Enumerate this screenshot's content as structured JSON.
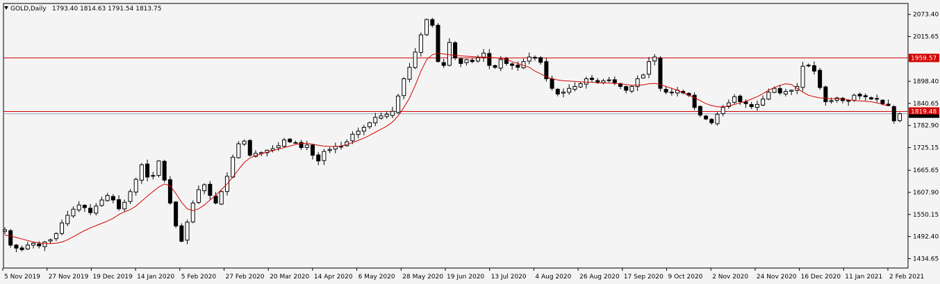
{
  "header": {
    "symbol": "GOLD,Daily",
    "ohlc": "1793.40 1814.63 1791.54 1813.75"
  },
  "chart_data": {
    "type": "candlestick",
    "title": "GOLD,Daily",
    "ylim": [
      1410,
      2102
    ],
    "grid": false,
    "colors": {
      "candle": "#000000",
      "moving_average": "#d40000",
      "level": "#d40000",
      "background": "#f4f4f4"
    },
    "y_ticks": [
      "2073.40",
      "2015.65",
      "1959.57",
      "1898.40",
      "1840.65",
      "1819.48",
      "1782.90",
      "1725.15",
      "1665.65",
      "1607.90",
      "1550.15",
      "1492.40",
      "1434.65"
    ],
    "x_ticks": [
      "5 Nov 2019",
      "27 Nov 2019",
      "19 Dec 2019",
      "14 Jan 2020",
      "5 Feb 2020",
      "27 Feb 2020",
      "20 Mar 2020",
      "14 Apr 2020",
      "6 May 2020",
      "28 May 2020",
      "19 Jun 2020",
      "13 Jul 2020",
      "4 Aug 2020",
      "26 Aug 2020",
      "17 Sep 2020",
      "9 Oct 2020",
      "2 Nov 2020",
      "24 Nov 2020",
      "16 Dec 2020",
      "11 Jan 2021",
      "2 Feb 2021"
    ],
    "levels": [
      {
        "label": "1959.57",
        "value": 1959.57
      },
      {
        "label": "1819.48",
        "value": 1819.48
      }
    ],
    "current_price": 1813.75,
    "close_path": [
      1510,
      1470,
      1462,
      1458,
      1470,
      1475,
      1468,
      1478,
      1484,
      1500,
      1528,
      1548,
      1564,
      1575,
      1568,
      1555,
      1572,
      1588,
      1600,
      1588,
      1565,
      1582,
      1610,
      1642,
      1680,
      1648,
      1652,
      1690,
      1640,
      1580,
      1520,
      1480,
      1530,
      1580,
      1615,
      1628,
      1600,
      1580,
      1610,
      1650,
      1700,
      1735,
      1742,
      1705,
      1710,
      1712,
      1718,
      1722,
      1730,
      1745,
      1740,
      1738,
      1725,
      1732,
      1705,
      1690,
      1715,
      1720,
      1728,
      1728,
      1740,
      1760,
      1768,
      1778,
      1790,
      1804,
      1808,
      1812,
      1820,
      1860,
      1905,
      1935,
      1975,
      2020,
      2060,
      2045,
      1950,
      1940,
      2000,
      1960,
      1945,
      1955,
      1950,
      1960,
      1972,
      1940,
      1935,
      1955,
      1945,
      1940,
      1935,
      1950,
      1962,
      1960,
      1948,
      1905,
      1880,
      1865,
      1870,
      1880,
      1885,
      1892,
      1905,
      1903,
      1895,
      1900,
      1902,
      1895,
      1885,
      1875,
      1885,
      1905,
      1915,
      1950,
      1962,
      1880,
      1870,
      1870,
      1875,
      1868,
      1862,
      1830,
      1810,
      1800,
      1790,
      1812,
      1830,
      1842,
      1858,
      1845,
      1840,
      1832,
      1838,
      1852,
      1870,
      1880,
      1868,
      1872,
      1875,
      1885,
      1938,
      1940,
      1925,
      1882,
      1845,
      1848,
      1855,
      1848,
      1848,
      1862,
      1860,
      1858,
      1852,
      1852,
      1840,
      1835,
      1795,
      1813.75
    ],
    "ma_path": [
      1496,
      1494,
      1490,
      1486,
      1482,
      1478,
      1476,
      1474,
      1474,
      1475,
      1478,
      1484,
      1492,
      1500,
      1508,
      1515,
      1521,
      1527,
      1533,
      1540,
      1550,
      1557,
      1563,
      1572,
      1585,
      1598,
      1610,
      1622,
      1630,
      1625,
      1605,
      1582,
      1565,
      1560,
      1565,
      1575,
      1588,
      1600,
      1615,
      1630,
      1648,
      1668,
      1686,
      1698,
      1704,
      1709,
      1713,
      1717,
      1721,
      1725,
      1729,
      1733,
      1736,
      1736,
      1734,
      1731,
      1729,
      1728,
      1728,
      1729,
      1733,
      1738,
      1744,
      1750,
      1757,
      1765,
      1773,
      1781,
      1792,
      1808,
      1830,
      1855,
      1888,
      1925,
      1955,
      1968,
      1972,
      1970,
      1968,
      1966,
      1965,
      1964,
      1963,
      1962,
      1962,
      1961,
      1960,
      1958,
      1955,
      1950,
      1945,
      1940,
      1935,
      1925,
      1918,
      1910,
      1905,
      1902,
      1900,
      1899,
      1898,
      1897,
      1896,
      1896,
      1895,
      1894,
      1894,
      1893,
      1892,
      1890,
      1888,
      1888,
      1889,
      1892,
      1893,
      1890,
      1885,
      1880,
      1875,
      1868,
      1862,
      1855,
      1848,
      1840,
      1835,
      1832,
      1832,
      1834,
      1838,
      1842,
      1846,
      1852,
      1858,
      1866,
      1875,
      1882,
      1888,
      1892,
      1890,
      1880,
      1870,
      1862,
      1858,
      1855,
      1854,
      1853,
      1853,
      1852,
      1850,
      1848,
      1847,
      1846,
      1845,
      1842,
      1838,
      1834
    ]
  }
}
